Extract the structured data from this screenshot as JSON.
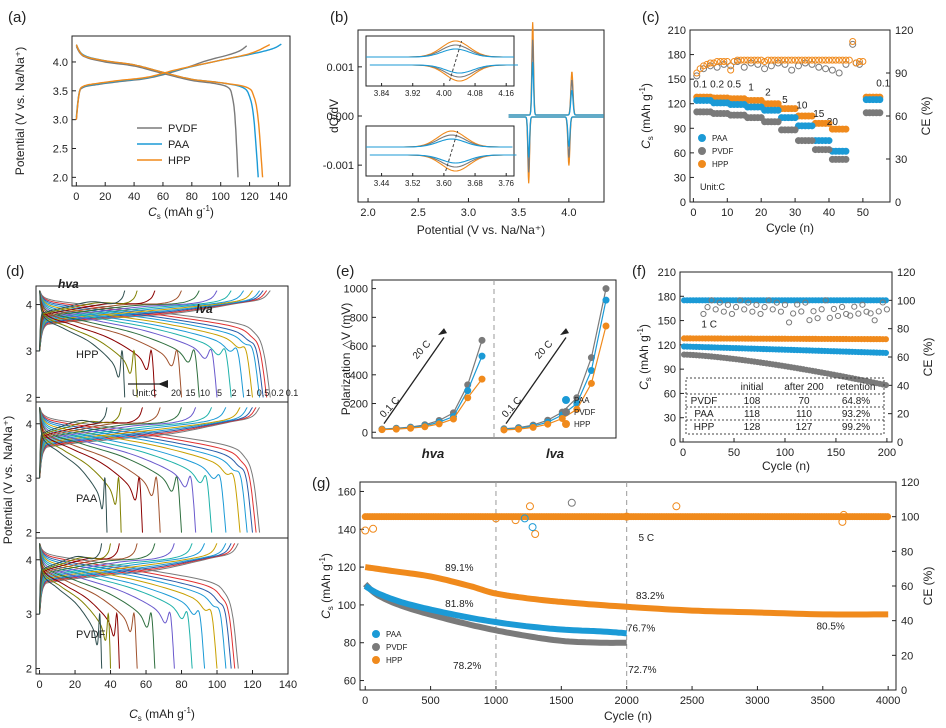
{
  "colors": {
    "pvdf": "#7a7a7a",
    "paa": "#1b9ad6",
    "hpp": "#f08a1c",
    "line": "#222222"
  },
  "chart_data": [
    {
      "id": "a",
      "type": "line",
      "panel_label": "(a)",
      "xlabel": "C_s (mAh g⁻¹)",
      "xlabel_main": "C",
      "xlabel_sub": "s",
      "xlabel_rest": " (mAh g",
      "xlabel_sup": "-1",
      "xlabel_end": ")",
      "ylabel": "Potential (V vs. Na/Na⁺)",
      "xlim": [
        -3,
        148
      ],
      "ylim": [
        1.85,
        4.45
      ],
      "xticks": [
        "0",
        "20",
        "40",
        "60",
        "80",
        "100",
        "120",
        "140"
      ],
      "xtick_values": [
        0,
        20,
        40,
        60,
        80,
        100,
        120,
        140
      ],
      "yticks": [
        "2.0",
        "2.5",
        "3.0",
        "3.5",
        "4.0"
      ],
      "ytick_values": [
        2.0,
        2.5,
        3.0,
        3.5,
        4.0
      ],
      "legend": [
        "PVDF",
        "PAA",
        "HPP"
      ],
      "series": [
        {
          "name": "PVDF",
          "color_key": "pvdf",
          "charge": {
            "x": [
              0,
              2,
              5,
              15,
              30,
              50,
              70,
              90,
              105,
              112,
              115,
              118
            ],
            "y": [
              3.0,
              3.45,
              3.56,
              3.61,
              3.66,
              3.72,
              3.85,
              4.02,
              4.12,
              4.18,
              4.22,
              4.28
            ]
          },
          "discharge": {
            "x": [
              0,
              5,
              20,
              40,
              60,
              80,
              95,
              105,
              108,
              110,
              112
            ],
            "y": [
              4.27,
              4.1,
              4.0,
              3.93,
              3.8,
              3.68,
              3.63,
              3.56,
              3.4,
              3.0,
              2.0
            ]
          }
        },
        {
          "name": "PAA",
          "color_key": "paa",
          "charge": {
            "x": [
              0,
              2,
              5,
              15,
              30,
              50,
              70,
              100,
              120,
              132,
              138,
              142
            ],
            "y": [
              3.05,
              3.47,
              3.57,
              3.62,
              3.67,
              3.73,
              3.86,
              4.03,
              4.13,
              4.2,
              4.25,
              4.31
            ]
          },
          "discharge": {
            "x": [
              0,
              5,
              20,
              40,
              60,
              80,
              100,
              115,
              120,
              123,
              126
            ],
            "y": [
              4.3,
              4.12,
              4.02,
              3.95,
              3.82,
              3.7,
              3.64,
              3.56,
              3.4,
              3.0,
              2.0
            ]
          }
        },
        {
          "name": "HPP",
          "color_key": "hpp",
          "charge": {
            "x": [
              0,
              2,
              5,
              15,
              30,
              50,
              70,
              100,
              118,
              126,
              130,
              134
            ],
            "y": [
              3.0,
              3.46,
              3.58,
              3.63,
              3.68,
              3.74,
              3.87,
              4.03,
              4.13,
              4.2,
              4.25,
              4.3
            ]
          },
          "discharge": {
            "x": [
              0,
              5,
              20,
              40,
              60,
              80,
              100,
              118,
              123,
              126,
              129
            ],
            "y": [
              4.3,
              4.11,
              4.02,
              3.95,
              3.82,
              3.7,
              3.64,
              3.56,
              3.4,
              3.0,
              2.0
            ]
          }
        }
      ]
    },
    {
      "id": "b",
      "type": "line",
      "panel_label": "(b)",
      "xlabel": "Potential (V vs. Na/Na⁺)",
      "ylabel": "dQ/dV",
      "xlim": [
        1.9,
        4.35
      ],
      "ylim": [
        -0.00175,
        0.00175
      ],
      "xticks": [
        "2.0",
        "2.5",
        "3.0",
        "3.5",
        "4.0"
      ],
      "xtick_values": [
        2.0,
        2.5,
        3.0,
        3.5,
        4.0
      ],
      "yticks": [
        "0.001",
        "0.000",
        "-0.001"
      ],
      "ytick_values": [
        0.001,
        0.0,
        -0.001
      ],
      "peaks": {
        "upper_V": 4.02,
        "lower_V": 3.62,
        "upper_height": [
          0.0021,
          0.0017,
          0.0012
        ],
        "lower_height": [
          0.0018,
          0.0015,
          0.0011
        ]
      },
      "inset_top": {
        "xticks": [
          "3.84",
          "3.92",
          "4.00",
          "4.08",
          "4.16"
        ],
        "xtick_values": [
          3.84,
          3.92,
          4.0,
          4.08,
          4.16
        ],
        "xlim": [
          3.8,
          4.18
        ],
        "center": 4.03,
        "amplitudes": [
          1.0,
          0.75,
          0.5
        ]
      },
      "inset_bottom": {
        "xticks": [
          "3.44",
          "3.52",
          "3.60",
          "3.68",
          "3.76"
        ],
        "xtick_values": [
          3.44,
          3.52,
          3.6,
          3.68,
          3.76
        ],
        "xlim": [
          3.4,
          3.78
        ],
        "center": 3.62,
        "amplitudes": [
          1.0,
          0.75,
          0.5
        ]
      }
    },
    {
      "id": "c",
      "type": "scatter",
      "panel_label": "(c)",
      "xlabel": "Cycle (n)",
      "ylabel": "C_s (mAh g⁻¹)",
      "ylabel_right": "CE (%)",
      "xlim": [
        -1,
        58
      ],
      "ylim": [
        0,
        210
      ],
      "ylim_right": [
        0,
        120
      ],
      "xticks": [
        "0",
        "10",
        "20",
        "30",
        "40",
        "50"
      ],
      "xtick_values": [
        0,
        10,
        20,
        30,
        40,
        50
      ],
      "yticks": [
        "0",
        "30",
        "60",
        "90",
        "120",
        "150",
        "180",
        "210"
      ],
      "ytick_values": [
        0,
        30,
        60,
        90,
        120,
        150,
        180,
        210
      ],
      "yticks_right": [
        "0",
        "30",
        "60",
        "90",
        "120"
      ],
      "ytick_right_values": [
        0,
        30,
        60,
        90,
        120
      ],
      "legend": [
        "PAA",
        "PVDF",
        "HPP"
      ],
      "unit_label": "Unit:C",
      "rates": [
        "0.1",
        "0.2",
        "0.5",
        "1",
        "2",
        "5",
        "10",
        "15",
        "20",
        "0.1"
      ],
      "rate_label_pos": [
        [
          2,
          140
        ],
        [
          7,
          140
        ],
        [
          12,
          140
        ],
        [
          17,
          136
        ],
        [
          22,
          130
        ],
        [
          27,
          121
        ],
        [
          32,
          114
        ],
        [
          37,
          104
        ],
        [
          41,
          94
        ],
        [
          56,
          141
        ]
      ],
      "capacity": {
        "PAA": [
          124,
          121,
          119,
          116,
          112,
          103,
          93,
          75,
          62,
          125
        ],
        "PVDF": [
          110,
          108,
          106,
          103,
          98,
          88,
          75,
          64,
          52,
          109
        ],
        "HPP": [
          128,
          127,
          126,
          124,
          120,
          114,
          105,
          96,
          89,
          128
        ]
      },
      "ce": {
        "PVDF_x": [
          1,
          3,
          5,
          7,
          9,
          11,
          13,
          15,
          17,
          19,
          21,
          23,
          25,
          27,
          29,
          31,
          33,
          35,
          37,
          39,
          41,
          43,
          45,
          47,
          48,
          49
        ],
        "PVDF_y": [
          88,
          93,
          95,
          94,
          96,
          95,
          98,
          94,
          97,
          96,
          93,
          95,
          97,
          96,
          92,
          95,
          97,
          96,
          94,
          93,
          92,
          90,
          96,
          110,
          97,
          96
        ],
        "HPP_x": [
          1,
          2,
          3,
          4,
          5,
          6,
          7,
          8,
          9,
          10,
          11,
          12,
          13,
          14,
          15,
          16,
          17,
          18,
          19,
          20,
          21,
          22,
          23,
          24,
          25,
          26,
          27,
          28,
          29,
          30,
          31,
          32,
          33,
          34,
          35,
          36,
          37,
          38,
          39,
          40,
          41,
          42,
          43,
          44,
          45,
          46,
          47,
          48,
          49,
          50
        ],
        "HPP_y": [
          90,
          93,
          95,
          96,
          97,
          97,
          98,
          98,
          98,
          98,
          92,
          98,
          99,
          99,
          99,
          99,
          99,
          99,
          99,
          99,
          98,
          99,
          99,
          99,
          99,
          99,
          99,
          99,
          99,
          99,
          99,
          99,
          99,
          99,
          99,
          99,
          99,
          99,
          99,
          99,
          99,
          99,
          99,
          99,
          99,
          99,
          112,
          97,
          98,
          98
        ]
      }
    },
    {
      "id": "d",
      "type": "line",
      "panel_label": "(d)",
      "xlabel": "C_s (mAh g⁻¹)",
      "ylabel": "Potential (V vs. Na/Na⁺)",
      "xlim": [
        -2,
        140
      ],
      "ylim": [
        1.9,
        4.45
      ],
      "xticks": [
        "0",
        "20",
        "40",
        "60",
        "80",
        "100",
        "120",
        "140"
      ],
      "xtick_values": [
        0,
        20,
        40,
        60,
        80,
        100,
        120,
        140
      ],
      "yticks": [
        "2",
        "3",
        "4"
      ],
      "ytick_values": [
        2,
        3,
        4
      ],
      "subpanels": [
        {
          "label": "HPP",
          "label_color_key": "hpp",
          "caps": [
            130,
            128,
            126,
            124,
            120,
            115,
            108,
            100,
            90,
            80,
            65,
            55,
            48
          ]
        },
        {
          "label": "PAA",
          "label_color_key": "paa",
          "caps": [
            124,
            122,
            120,
            117,
            113,
            105,
            97,
            88,
            80,
            68,
            58,
            46,
            38
          ]
        },
        {
          "label": "PVDF",
          "label_color_key": "pvdf",
          "caps": [
            112,
            110,
            108,
            105,
            100,
            93,
            86,
            76,
            65,
            55,
            45,
            40,
            35
          ]
        }
      ],
      "annotations": {
        "hva": "hva",
        "lva": "lva",
        "unit": "Unit:C",
        "rate_labels": [
          "20",
          "15",
          "10",
          "5",
          "2",
          "1",
          "0.5",
          "0.2",
          "0.1"
        ],
        "rate_colors": [
          "#556b2f",
          "#8b0000",
          "#2a2a2a",
          "#1b9ad6",
          "#c8a000",
          "#1b9ad6",
          "#3c6fb6",
          "#e03030",
          "#7a7a7a"
        ]
      },
      "curve_colors": [
        "#7a7a7a",
        "#e03030",
        "#2a5ba8",
        "#1b9ad6",
        "#c8a000",
        "#1b9ad6",
        "#20b2aa",
        "#6a5acd",
        "#2f6f3f",
        "#a0522d",
        "#8b0000",
        "#808000",
        "#2f4f4f"
      ]
    },
    {
      "id": "e",
      "type": "line",
      "panel_label": "(e)",
      "ylabel": "Polarization △V (mV)",
      "ylim": [
        -40,
        1060
      ],
      "yticks": [
        "0",
        "200",
        "400",
        "600",
        "800",
        "1000"
      ],
      "ytick_values": [
        0,
        200,
        400,
        600,
        800,
        1000
      ],
      "groups": [
        "hva",
        "lva"
      ],
      "arrow_text": "20 C",
      "arrow_start_text": "0.1 C",
      "legend": [
        "PAA",
        "PVDF",
        "HPP"
      ],
      "hva": {
        "PAA": [
          20,
          25,
          32,
          45,
          70,
          110,
          290,
          530
        ],
        "PVDF": [
          22,
          28,
          36,
          52,
          82,
          135,
          330,
          640
        ],
        "HPP": [
          18,
          22,
          28,
          38,
          58,
          92,
          240,
          370
        ]
      },
      "lva": {
        "PAA": [
          20,
          28,
          42,
          70,
          120,
          200,
          430,
          920
        ],
        "PVDF": [
          24,
          32,
          50,
          84,
          140,
          240,
          520,
          1000
        ],
        "HPP": [
          16,
          22,
          34,
          56,
          96,
          160,
          340,
          740
        ]
      }
    },
    {
      "id": "f",
      "type": "scatter",
      "panel_label": "(f)",
      "xlabel": "Cycle (n)",
      "ylabel": "C_s (mAh g⁻¹)",
      "ylabel_right": "CE (%)",
      "xlim": [
        -3,
        205
      ],
      "ylim": [
        0,
        210
      ],
      "ylim_right": [
        0,
        120
      ],
      "xticks": [
        "0",
        "50",
        "100",
        "150",
        "200"
      ],
      "xtick_values": [
        0,
        50,
        100,
        150,
        200
      ],
      "yticks": [
        "0",
        "30",
        "60",
        "90",
        "120",
        "150",
        "180",
        "210"
      ],
      "ytick_values": [
        0,
        30,
        60,
        90,
        120,
        150,
        180,
        210
      ],
      "yticks_right": [
        "0",
        "20",
        "40",
        "60",
        "80",
        "100",
        "120"
      ],
      "ytick_right_values": [
        0,
        20,
        40,
        60,
        80,
        100,
        120
      ],
      "rate_text": "1 C",
      "series": [
        {
          "name": "HPP",
          "color_key": "hpp",
          "start": 128,
          "end": 127
        },
        {
          "name": "PAA",
          "color_key": "paa",
          "start": 118,
          "end": 110
        },
        {
          "name": "PVDF",
          "color_key": "pvdf",
          "start": 108,
          "end": 70
        }
      ],
      "table": {
        "headers": [
          "",
          "initial",
          "after 200",
          "retention"
        ],
        "rows": [
          [
            "PVDF",
            "108",
            "70",
            "64.8%"
          ],
          [
            "PAA",
            "118",
            "110",
            "93.2%"
          ],
          [
            "HPP",
            "128",
            "127",
            "99.2%"
          ]
        ]
      }
    },
    {
      "id": "g",
      "type": "scatter",
      "panel_label": "(g)",
      "xlabel": "Cycle (n)",
      "ylabel": "C_s (mAh g⁻¹)",
      "ylabel_right": "CE (%)",
      "xlim": [
        -40,
        4060
      ],
      "ylim": [
        55,
        165
      ],
      "ylim_right": [
        0,
        120
      ],
      "xticks": [
        "0",
        "500",
        "1000",
        "1500",
        "2000",
        "2500",
        "3000",
        "3500",
        "4000"
      ],
      "xtick_values": [
        0,
        500,
        1000,
        1500,
        2000,
        2500,
        3000,
        3500,
        4000
      ],
      "yticks": [
        "60",
        "80",
        "100",
        "120",
        "140",
        "160"
      ],
      "ytick_values": [
        60,
        80,
        100,
        120,
        140,
        160
      ],
      "yticks_right": [
        "0",
        "20",
        "40",
        "60",
        "80",
        "100",
        "120"
      ],
      "ytick_right_values": [
        0,
        20,
        40,
        60,
        80,
        100,
        120
      ],
      "legend": [
        "PAA",
        "PVDF",
        "HPP"
      ],
      "rate_text": "5 C",
      "dividers": [
        1000,
        2000
      ],
      "HPP": {
        "x": [
          0,
          200,
          500,
          800,
          1000,
          1300,
          1600,
          2000,
          2500,
          3000,
          3500,
          4000
        ],
        "y": [
          120,
          118,
          115,
          110,
          106,
          103,
          101,
          99,
          97,
          96,
          95,
          95
        ]
      },
      "PAA": {
        "x": [
          0,
          100,
          300,
          600,
          900,
          1200,
          1500,
          1800,
          2000
        ],
        "y": [
          110,
          106,
          101,
          96,
          92,
          89,
          87,
          86,
          85
        ]
      },
      "PVDF": {
        "x": [
          0,
          100,
          300,
          600,
          900,
          1200,
          1500,
          1800,
          2000
        ],
        "y": [
          111,
          105,
          99,
          93,
          88,
          84,
          81,
          80,
          80
        ]
      },
      "annotations": [
        {
          "text": "89.1%",
          "x": 720,
          "y": 118,
          "color_key": "hpp"
        },
        {
          "text": "81.8%",
          "x": 720,
          "y": 99,
          "color_key": "paa"
        },
        {
          "text": "78.2%",
          "x": 780,
          "y": 66,
          "color_key": "pvdf"
        },
        {
          "text": "83.2%",
          "x": 2180,
          "y": 103,
          "color_key": "hpp"
        },
        {
          "text": "76.7%",
          "x": 2110,
          "y": 86,
          "color_key": "paa"
        },
        {
          "text": "72.7%",
          "x": 2120,
          "y": 64,
          "color_key": "pvdf"
        },
        {
          "text": "80.5%",
          "x": 3560,
          "y": 87,
          "color_key": "hpp"
        }
      ]
    }
  ]
}
